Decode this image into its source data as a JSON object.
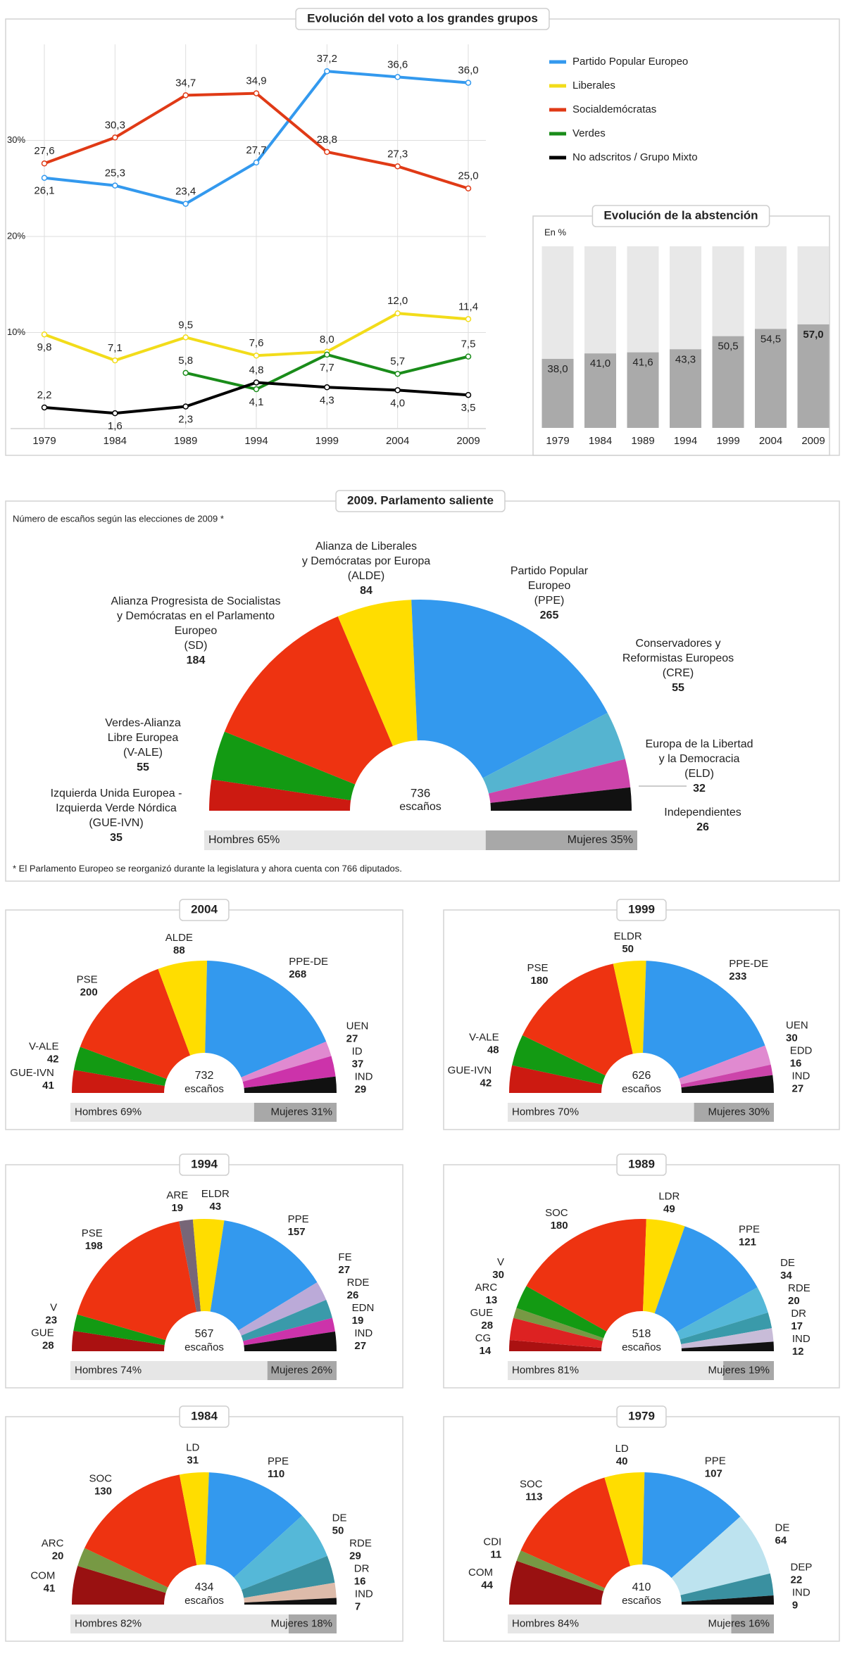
{
  "chart_data": [
    {
      "type": "line",
      "title": "Evolución del voto a los grandes grupos",
      "x": [
        1979,
        1984,
        1989,
        1994,
        1999,
        2004,
        2009
      ],
      "xlim": [
        1979,
        2009
      ],
      "xticks": [
        1979,
        1984,
        1989,
        1994,
        1999,
        2004,
        2009
      ],
      "ylim": [
        0,
        40
      ],
      "yticks": [
        {
          "value": 10,
          "label": "10%"
        },
        {
          "value": 20,
          "label": "20%"
        },
        {
          "value": 30,
          "label": "30%"
        }
      ],
      "grid": true,
      "series": [
        {
          "name": "Partido Popular Europeo",
          "color": "#3399ee",
          "values": [
            26.1,
            25.3,
            23.4,
            27.7,
            37.2,
            36.6,
            36.0
          ],
          "value_labels": [
            "26,1",
            "25,3",
            "23,4",
            "27,7",
            "37,2",
            "36,6",
            "36,0"
          ]
        },
        {
          "name": "Liberales",
          "color": "#f2dc1a",
          "values": [
            9.8,
            7.1,
            9.5,
            7.6,
            8.0,
            12.0,
            11.4
          ],
          "value_labels": [
            "9,8",
            "7,1",
            "9,5",
            "7,6",
            "8,0",
            "12,0",
            "11,4"
          ]
        },
        {
          "name": "Socialdemócratas",
          "color": "#e03a16",
          "values": [
            27.6,
            30.3,
            34.7,
            34.9,
            28.8,
            27.3,
            25.0
          ],
          "value_labels": [
            "27,6",
            "30,3",
            "34,7",
            "34,9",
            "28,8",
            "27,3",
            "25,0"
          ]
        },
        {
          "name": "Verdes",
          "color": "#1a8c1a",
          "values": [
            null,
            null,
            5.8,
            4.1,
            7.7,
            5.7,
            7.5
          ],
          "value_labels": [
            null,
            null,
            "5,8",
            "4,1",
            "7,7",
            "5,7",
            "7,5"
          ]
        },
        {
          "name": "No adscritos / Grupo Mixto",
          "color": "#000000",
          "values": [
            2.2,
            1.6,
            2.3,
            4.8,
            4.3,
            4.0,
            3.5
          ],
          "value_labels": [
            "2,2",
            "1,6",
            "2,3",
            "4,8",
            "4,3",
            "4,0",
            "3,5"
          ]
        }
      ]
    },
    {
      "type": "bar",
      "title": "Evolución de la abstención",
      "subtitle": "En %",
      "categories": [
        "1979",
        "1984",
        "1989",
        "1994",
        "1999",
        "2004",
        "2009"
      ],
      "values": [
        38.0,
        41.0,
        41.6,
        43.3,
        50.5,
        54.5,
        57.0
      ],
      "value_labels": [
        "38,0",
        "41,0",
        "41,6",
        "43,3",
        "50,5",
        "54,5",
        "57,0"
      ],
      "color": "#aaaaaa",
      "ylim": [
        0,
        100
      ]
    },
    {
      "type": "hemicycle",
      "title": "2009. Parlamento saliente",
      "subtitle": "Número de escaños según las elecciones de 2009 *",
      "categories": [
        [
          "Izquierda Unida Europea -",
          "Izquierda Verde Nórdica",
          "(GUE-IVN)"
        ],
        [
          "Verdes-Alianza",
          "Libre Europea",
          "(V-ALE)"
        ],
        [
          "Alianza Progresista de Socialistas",
          "y Demócratas en el Parlamento",
          "Europeo",
          "(SD)"
        ],
        [
          "Alianza de Liberales",
          "y Demócratas por Europa",
          "(ALDE)"
        ],
        [
          "Partido Popular",
          "Europeo",
          "(PPE)"
        ],
        [
          "Conservadores y",
          "Reformistas Europeos",
          "(CRE)"
        ],
        [
          "Europa de la Libertad",
          "y la Democracia",
          "(ELD)"
        ],
        [
          "Independientes"
        ]
      ],
      "values": [
        35,
        55,
        184,
        84,
        265,
        55,
        32,
        26
      ],
      "colors": [
        "#cc1a11",
        "#139a13",
        "#ee3311",
        "#ffdd00",
        "#3399ee",
        "#55b4d0",
        "#cc44aa",
        "#111111"
      ],
      "total": 736,
      "total_label": "escaños",
      "gender": {
        "values": [
          65,
          35
        ],
        "value_labels": [
          "Hombres 65%",
          "Mujeres 35%"
        ]
      },
      "note": "* El Parlamento Europeo se reorganizó durante la legislatura y ahora cuenta con 766 diputados."
    },
    {
      "type": "hemicycle",
      "title": "2004",
      "categories": [
        "GUE-IVN",
        "V-ALE",
        "PSE",
        "ALDE",
        "PPE-DE",
        "UEN",
        "ID",
        "IND"
      ],
      "values": [
        41,
        42,
        200,
        88,
        268,
        27,
        37,
        29
      ],
      "colors": [
        "#cc1a11",
        "#139a13",
        "#ee3311",
        "#ffdd00",
        "#3399ee",
        "#e08ad0",
        "#cc33aa",
        "#111111"
      ],
      "total": 732,
      "total_label": "escaños",
      "gender": {
        "values": [
          69,
          31
        ],
        "value_labels": [
          "Hombres 69%",
          "Mujeres 31%"
        ]
      }
    },
    {
      "type": "hemicycle",
      "title": "1999",
      "categories": [
        "GUE-IVN",
        "V-ALE",
        "PSE",
        "ELDR",
        "PPE-DE",
        "UEN",
        "EDD",
        "IND"
      ],
      "values": [
        42,
        48,
        180,
        50,
        233,
        30,
        16,
        27
      ],
      "colors": [
        "#cc1a11",
        "#139a13",
        "#ee3311",
        "#ffdd00",
        "#3399ee",
        "#e08ad0",
        "#cc44aa",
        "#111111"
      ],
      "total": 626,
      "total_label": "escaños",
      "gender": {
        "values": [
          70,
          30
        ],
        "value_labels": [
          "Hombres 70%",
          "Mujeres 30%"
        ]
      }
    },
    {
      "type": "hemicycle",
      "title": "1994",
      "categories": [
        "GUE",
        "V",
        "PSE",
        "ARE",
        "ELDR",
        "PPE",
        "FE",
        "RDE",
        "EDN",
        "IND"
      ],
      "values": [
        28,
        23,
        198,
        19,
        43,
        157,
        27,
        26,
        19,
        27
      ],
      "colors": [
        "#aa1111",
        "#139a13",
        "#ee3311",
        "#776677",
        "#ffdd00",
        "#3399ee",
        "#bbaad8",
        "#3a9aaa",
        "#cc33aa",
        "#111111"
      ],
      "total": 567,
      "total_label": "escaños",
      "gender": {
        "values": [
          74,
          26
        ],
        "value_labels": [
          "Hombres 74%",
          "Mujeres 26%"
        ]
      }
    },
    {
      "type": "hemicycle",
      "title": "1989",
      "categories": [
        "CG",
        "GUE",
        "ARC",
        "V",
        "SOC",
        "LDR",
        "PPE",
        "DE",
        "RDE",
        "DR",
        "IND"
      ],
      "values": [
        14,
        28,
        13,
        30,
        180,
        49,
        121,
        34,
        20,
        17,
        12
      ],
      "colors": [
        "#aa1111",
        "#dd2222",
        "#779944",
        "#139a13",
        "#ee3311",
        "#ffdd00",
        "#3399ee",
        "#55b8d8",
        "#3a9aaa",
        "#c8bcd8",
        "#111111"
      ],
      "total": 518,
      "total_label": "escaños",
      "gender": {
        "values": [
          81,
          19
        ],
        "value_labels": [
          "Hombres 81%",
          "Mujeres 19%"
        ]
      }
    },
    {
      "type": "hemicycle",
      "title": "1984",
      "categories": [
        "COM",
        "ARC",
        "SOC",
        "LD",
        "PPE",
        "DE",
        "RDE",
        "DR",
        "IND"
      ],
      "values": [
        41,
        20,
        130,
        31,
        110,
        50,
        29,
        16,
        7
      ],
      "colors": [
        "#991111",
        "#779944",
        "#ee3311",
        "#ffdd00",
        "#3399ee",
        "#55b8d8",
        "#3a90a0",
        "#ddbbaa",
        "#111111"
      ],
      "total": 434,
      "total_label": "escaños",
      "gender": {
        "values": [
          82,
          18
        ],
        "value_labels": [
          "Hombres 82%",
          "Mujeres 18%"
        ]
      }
    },
    {
      "type": "hemicycle",
      "title": "1979",
      "categories": [
        "COM",
        "CDI",
        "SOC",
        "LD",
        "PPE",
        "DE",
        "DEP",
        "IND"
      ],
      "values": [
        44,
        11,
        113,
        40,
        107,
        64,
        22,
        9
      ],
      "colors": [
        "#991111",
        "#779944",
        "#ee3311",
        "#ffdd00",
        "#3399ee",
        "#bde3ef",
        "#3a90a0",
        "#111111"
      ],
      "total": 410,
      "total_label": "escaños",
      "gender": {
        "values": [
          84,
          16
        ],
        "value_labels": [
          "Hombres 84%",
          "Mujeres 16%"
        ]
      }
    }
  ]
}
